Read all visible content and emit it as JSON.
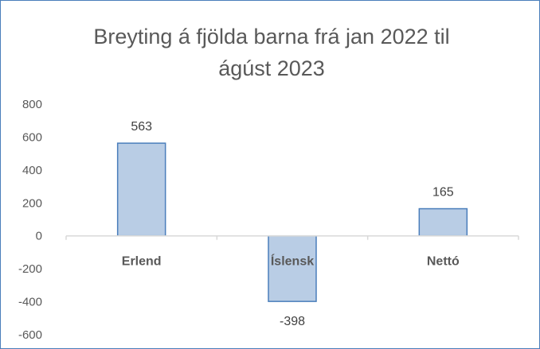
{
  "chart_data": {
    "type": "bar",
    "title_lines": [
      "Breyting á fjölda barna frá jan 2022 til",
      "ágúst  2023"
    ],
    "categories": [
      "Erlend",
      "Íslensk",
      "Nettó"
    ],
    "values": [
      563,
      -398,
      165
    ],
    "data_labels": [
      "563",
      "-398",
      "165"
    ],
    "y_ticks": [
      "800",
      "600",
      "400",
      "200",
      "0",
      "-200",
      "-400",
      "-600"
    ],
    "ylim": [
      -600,
      800
    ],
    "xlabel": "",
    "ylabel": "",
    "grid": false,
    "legend": "none",
    "bar_fill": "#b9cde5",
    "bar_stroke": "#4a7ebb",
    "axis_color": "#d9d9d9"
  }
}
